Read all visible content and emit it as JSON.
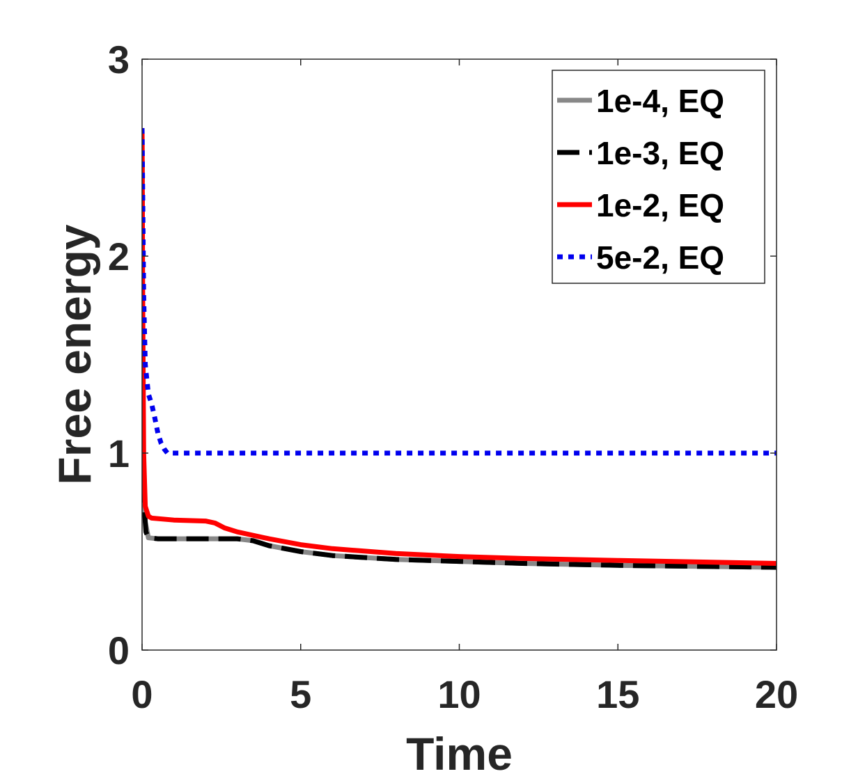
{
  "chart_data": {
    "type": "line",
    "title": "",
    "xlabel": "Time",
    "ylabel": "Free energy",
    "xlim": [
      0,
      20
    ],
    "ylim": [
      0,
      3
    ],
    "xticks": [
      "0",
      "5",
      "10",
      "15",
      "20"
    ],
    "yticks": [
      "0",
      "1",
      "2",
      "3"
    ],
    "grid": false,
    "legend_position": "top-right",
    "series": [
      {
        "name": "1e-4, EQ",
        "color": "#888888",
        "style": "solid",
        "x": [
          0,
          0.02,
          0.05,
          0.1,
          0.2,
          0.5,
          1,
          2,
          3,
          3.5,
          4,
          5,
          6,
          7,
          8,
          10,
          12,
          15,
          20
        ],
        "y": [
          2.65,
          1.3,
          0.9,
          0.65,
          0.57,
          0.565,
          0.565,
          0.565,
          0.565,
          0.555,
          0.53,
          0.5,
          0.48,
          0.47,
          0.46,
          0.45,
          0.44,
          0.43,
          0.42
        ]
      },
      {
        "name": "1e-3, EQ",
        "color": "#000000",
        "style": "dashed",
        "x": [
          0,
          0.02,
          0.05,
          0.08,
          0.12,
          0.2,
          0.5,
          1,
          2,
          3,
          3.5,
          4,
          5,
          6,
          7,
          8,
          10,
          12,
          15,
          20
        ],
        "y": [
          2.65,
          1.3,
          0.9,
          0.7,
          0.6,
          0.57,
          0.565,
          0.565,
          0.565,
          0.565,
          0.555,
          0.53,
          0.5,
          0.48,
          0.47,
          0.46,
          0.45,
          0.44,
          0.43,
          0.42
        ]
      },
      {
        "name": "1e-2, EQ",
        "color": "#ff0000",
        "style": "solid",
        "x": [
          0,
          0.02,
          0.05,
          0.1,
          0.2,
          0.3,
          1,
          2,
          2.3,
          2.6,
          3,
          4,
          5,
          6,
          8,
          10,
          12,
          15,
          20
        ],
        "y": [
          2.65,
          1.8,
          1.0,
          0.73,
          0.68,
          0.67,
          0.66,
          0.655,
          0.645,
          0.62,
          0.6,
          0.565,
          0.535,
          0.515,
          0.49,
          0.475,
          0.465,
          0.455,
          0.44
        ]
      },
      {
        "name": "5e-2, EQ",
        "color": "#0000ee",
        "style": "dotted",
        "x": [
          0,
          0.05,
          0.1,
          0.2,
          0.3,
          0.4,
          0.5,
          0.6,
          0.7,
          0.8,
          1,
          2,
          5,
          10,
          15,
          20
        ],
        "y": [
          2.65,
          1.8,
          1.45,
          1.3,
          1.25,
          1.18,
          1.1,
          1.05,
          1.02,
          1.0,
          1.0,
          1.0,
          1.0,
          1.0,
          1.0,
          1.0
        ]
      }
    ]
  }
}
